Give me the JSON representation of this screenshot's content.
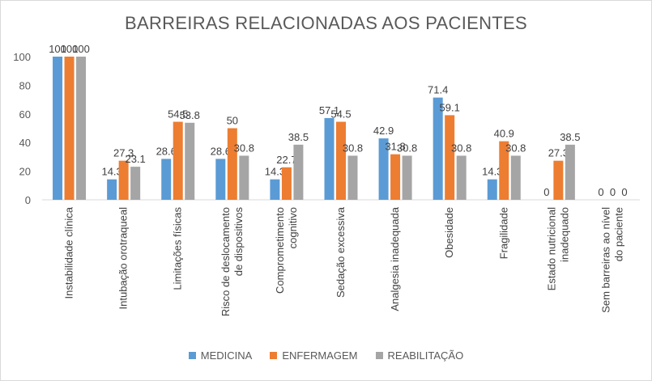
{
  "chart_data": {
    "type": "bar",
    "title": "BARREIRAS RELACIONADAS AOS PACIENTES",
    "xlabel": "",
    "ylabel": "",
    "ylim": [
      0,
      100
    ],
    "yticks": [
      0,
      20,
      40,
      60,
      80,
      100
    ],
    "grid": false,
    "legend_position": "bottom",
    "categories": [
      [
        "Instabilidade clínica"
      ],
      [
        "Intubação orotraqueal"
      ],
      [
        "Limitações físicas"
      ],
      [
        "Risco de deslocamento",
        "de dispositivos"
      ],
      [
        "Comprometimento",
        "cognitivo"
      ],
      [
        "Sedação excessiva"
      ],
      [
        "Analgesia inadequada"
      ],
      [
        "Obesidade"
      ],
      [
        "Fragilidade"
      ],
      [
        "Estado nutricional",
        "inadequado"
      ],
      [
        "Sem barreiras ao nível",
        "do paciente"
      ]
    ],
    "series": [
      {
        "name": "MEDICINA",
        "color": "#5b9bd5",
        "values": [
          100,
          14.3,
          28.6,
          28.6,
          14.3,
          57.1,
          42.9,
          71.4,
          14.3,
          0,
          0
        ]
      },
      {
        "name": "ENFERMAGEM",
        "color": "#ed7d31",
        "values": [
          100,
          27.3,
          54.5,
          50,
          22.7,
          54.5,
          31.8,
          59.1,
          40.9,
          27.3,
          0
        ]
      },
      {
        "name": "REABILITAÇÃO",
        "color": "#a5a5a5",
        "values": [
          100,
          23.1,
          53.8,
          30.8,
          38.5,
          30.8,
          30.8,
          30.8,
          30.8,
          38.5,
          0
        ]
      }
    ]
  }
}
